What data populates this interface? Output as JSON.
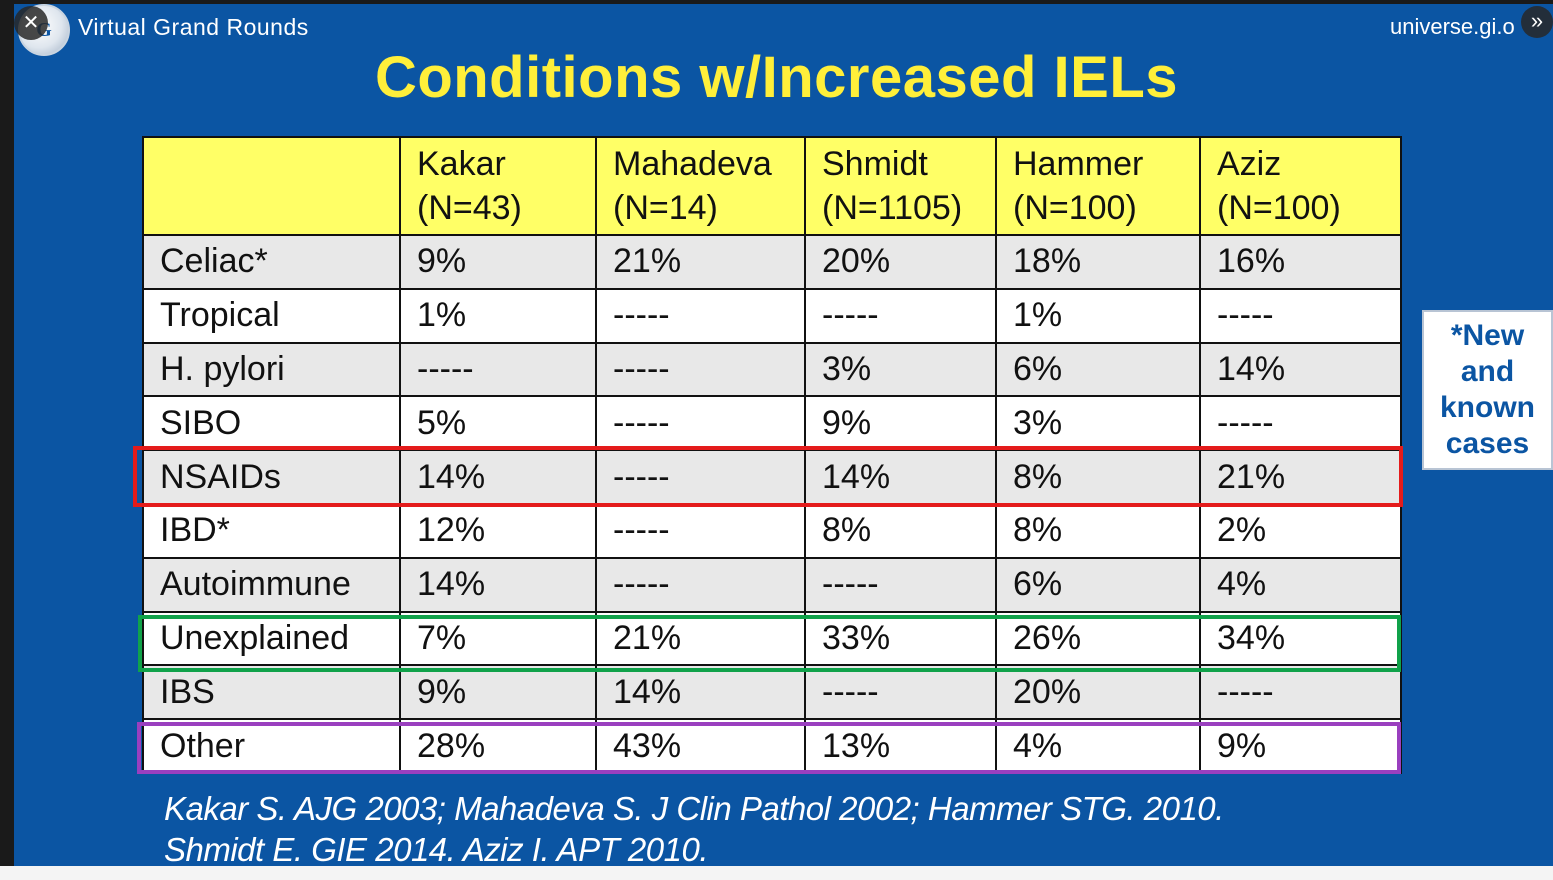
{
  "header": {
    "logo_text": "G",
    "brand": "Virtual Grand Rounds",
    "site": "universe.gi.o"
  },
  "controls": {
    "close_glyph": "✕",
    "next_glyph": "»"
  },
  "title": "Conditions w/Increased IELs",
  "table": {
    "columns": [
      {
        "name": "Kakar",
        "n": "(N=43)"
      },
      {
        "name": "Mahadeva",
        "n": "(N=14)"
      },
      {
        "name": "Shmidt",
        "n": "(N=1105)"
      },
      {
        "name": "Hammer",
        "n": "(N=100)"
      },
      {
        "name": "Aziz",
        "n": "(N=100)"
      }
    ],
    "rows": [
      {
        "label": "Celiac*",
        "values": [
          "9%",
          "21%",
          "20%",
          "18%",
          "16%"
        ]
      },
      {
        "label": "Tropical",
        "values": [
          "1%",
          "-----",
          "-----",
          "1%",
          "-----"
        ]
      },
      {
        "label": "H. pylori",
        "values": [
          "-----",
          "-----",
          "3%",
          "6%",
          "14%"
        ]
      },
      {
        "label": "SIBO",
        "values": [
          "5%",
          "-----",
          "9%",
          "3%",
          "-----"
        ]
      },
      {
        "label": "NSAIDs",
        "values": [
          "14%",
          "-----",
          "14%",
          "8%",
          "21%"
        ]
      },
      {
        "label": "IBD*",
        "values": [
          "12%",
          "-----",
          "8%",
          "8%",
          "2%"
        ]
      },
      {
        "label": "Autoimmune",
        "values": [
          "14%",
          "-----",
          "-----",
          "6%",
          "4%"
        ]
      },
      {
        "label": "Unexplained",
        "values": [
          "7%",
          "21%",
          "33%",
          "26%",
          "34%"
        ]
      },
      {
        "label": "IBS",
        "values": [
          "9%",
          "14%",
          "-----",
          "20%",
          "-----"
        ]
      },
      {
        "label": "Other",
        "values": [
          "28%",
          "43%",
          "13%",
          "4%",
          "9%"
        ]
      }
    ]
  },
  "note": {
    "lines": [
      "*New",
      "and",
      "known",
      "cases"
    ]
  },
  "citations": {
    "line1": "Kakar S. AJG 2003; Mahadeva S. J Clin Pathol 2002; Hammer STG. 2010.",
    "line2": "Shmidt E. GIE 2014. Aziz I. APT 2010."
  },
  "colors": {
    "background": "#0b55a3",
    "title": "#ffef3a",
    "header_row": "#ffff66",
    "highlight_nsaids": "#e41b1b",
    "highlight_unexplained": "#10a24a",
    "highlight_other": "#9a3fbf"
  }
}
